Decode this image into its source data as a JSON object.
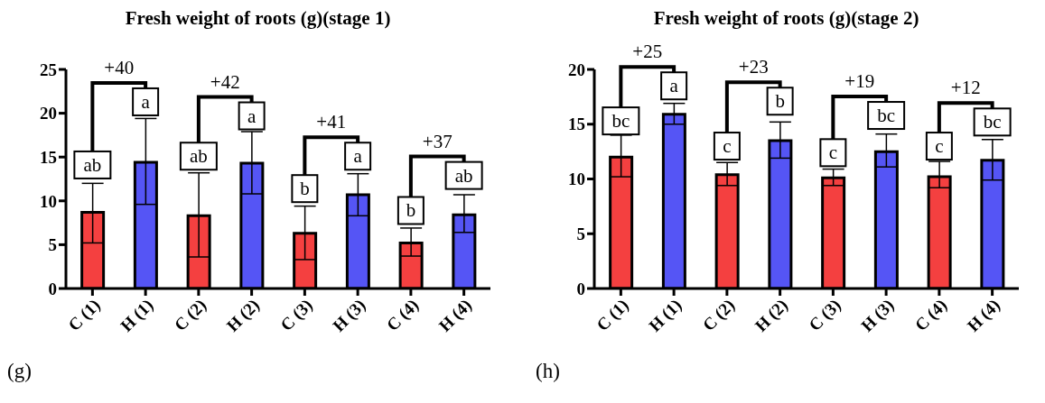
{
  "chart_data": [
    {
      "type": "bar",
      "title": "Fresh weight of roots (g)(stage 1)",
      "categories": [
        "C (1)",
        "H (1)",
        "C (2)",
        "H (2)",
        "C (3)",
        "H (3)",
        "C (4)",
        "H (4)"
      ],
      "values": [
        8.7,
        14.4,
        8.3,
        14.3,
        6.3,
        10.7,
        5.2,
        8.4
      ],
      "colors": [
        "#f44040",
        "#5555f5",
        "#f44040",
        "#5555f5",
        "#f44040",
        "#5555f5",
        "#f44040",
        "#5555f5"
      ],
      "errors": [
        [
          5.2,
          12.0
        ],
        [
          9.6,
          19.4
        ],
        [
          3.6,
          13.2
        ],
        [
          10.8,
          17.9
        ],
        [
          3.3,
          9.4
        ],
        [
          8.3,
          13.1
        ],
        [
          3.7,
          6.9
        ],
        [
          6.4,
          10.7
        ]
      ],
      "ylim": [
        0,
        25
      ],
      "yticks": [
        0,
        5,
        10,
        15,
        20,
        25
      ],
      "annotations": [
        {
          "text": "ab",
          "x": "C (1)",
          "y": 14.1
        },
        {
          "text": "a",
          "x": "H (1)",
          "y": 21.3
        },
        {
          "text": "ab",
          "x": "C (2)",
          "y": 15.1
        },
        {
          "text": "a",
          "x": "H (2)",
          "y": 19.7
        },
        {
          "text": "b",
          "x": "C (3)",
          "y": 11.4
        },
        {
          "text": "a",
          "x": "H (3)",
          "y": 15.1
        },
        {
          "text": "b",
          "x": "C (4)",
          "y": 8.9
        },
        {
          "text": "ab",
          "x": "H (4)",
          "y": 12.9
        },
        "+40",
        "+42",
        "+41",
        "+37",
        "(g)"
      ]
    },
    {
      "type": "bar",
      "title": "Fresh weight of roots (g)(stage 2)",
      "categories": [
        "C (1)",
        "H (1)",
        "C (2)",
        "H (2)",
        "C (3)",
        "H (3)",
        "C (4)",
        "H (4)"
      ],
      "values": [
        12.0,
        15.9,
        10.4,
        13.5,
        10.1,
        12.5,
        10.2,
        11.7
      ],
      "colors": [
        "#f44040",
        "#5555f5",
        "#f44040",
        "#5555f5",
        "#f44040",
        "#5555f5",
        "#f44040",
        "#5555f5"
      ],
      "errors": [
        [
          10.2,
          14.0
        ],
        [
          15.0,
          16.9
        ],
        [
          9.4,
          11.5
        ],
        [
          11.9,
          15.2
        ],
        [
          9.4,
          10.9
        ],
        [
          11.1,
          14.1
        ],
        [
          9.2,
          11.6
        ],
        [
          9.9,
          13.6
        ]
      ],
      "ylim": [
        0,
        20
      ],
      "yticks": [
        0,
        5,
        10,
        15,
        20
      ],
      "annotations": [
        {
          "text": "bc",
          "x": "C (1)",
          "y": 15.3
        },
        {
          "text": "a",
          "x": "H (1)",
          "y": 18.5
        },
        {
          "text": "c",
          "x": "C (2)",
          "y": 13.0
        },
        {
          "text": "b",
          "x": "H (2)",
          "y": 17.1
        },
        {
          "text": "c",
          "x": "C (3)",
          "y": 12.4
        },
        {
          "text": "bc",
          "x": "H (3)",
          "y": 15.8
        },
        {
          "text": "c",
          "x": "C (4)",
          "y": 13.0
        },
        {
          "text": "bc",
          "x": "H (4)",
          "y": 15.2
        },
        "+25",
        "+23",
        "+19",
        "+12",
        "(h)"
      ]
    }
  ]
}
